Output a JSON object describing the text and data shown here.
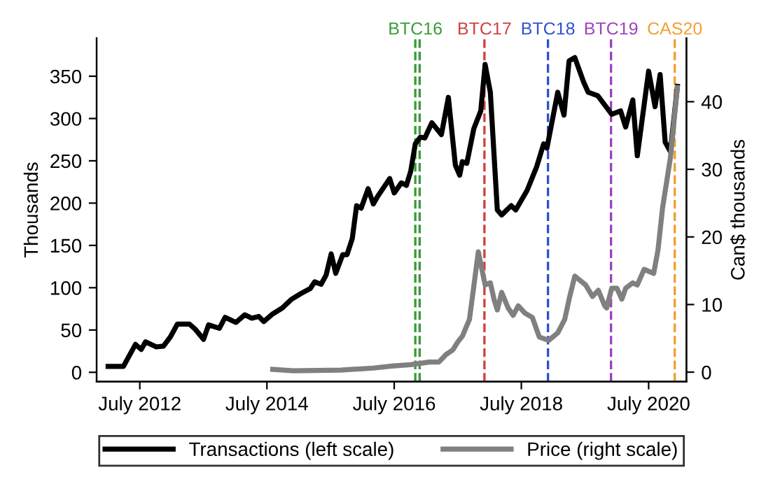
{
  "chart_data": {
    "type": "line",
    "ylabel": "Thousands",
    "y2label": "Can$ thousands",
    "xlim": [
      "2011-10-27",
      "2021-02-03"
    ],
    "xticks": [
      {
        "value": "2012-07-01",
        "label": "July 2012"
      },
      {
        "value": "2014-07-01",
        "label": "July 2014"
      },
      {
        "value": "2016-07-01",
        "label": "July 2016"
      },
      {
        "value": "2018-07-01",
        "label": "July 2018"
      },
      {
        "value": "2020-07-01",
        "label": "July 2020"
      }
    ],
    "ylim": [
      -11,
      395
    ],
    "yticks": [
      0,
      50,
      100,
      150,
      200,
      250,
      300,
      350
    ],
    "y2lim": [
      -1.4,
      49.4
    ],
    "y2ticks": [
      0,
      10,
      20,
      30,
      40
    ],
    "grid": false,
    "legend": "bottom",
    "line_style": "solid",
    "marker": "none",
    "series": [
      {
        "name": "Transactions (left scale)",
        "color": "#000000",
        "x": [
          "2012-01-01",
          "2012-03-29",
          "2012-06-06",
          "2012-07-09",
          "2012-08-03",
          "2012-10-04",
          "2012-11-14",
          "2012-12-24",
          "2013-02-02",
          "2013-04-12",
          "2013-05-15",
          "2013-07-02",
          "2013-07-31",
          "2013-10-01",
          "2013-11-03",
          "2014-01-04",
          "2014-02-24",
          "2014-04-05",
          "2014-05-15",
          "2014-06-13",
          "2014-08-03",
          "2014-09-27",
          "2014-11-17",
          "2015-01-11",
          "2015-03-07",
          "2015-04-01",
          "2015-05-08",
          "2015-06-06",
          "2015-07-05",
          "2015-07-31",
          "2015-09-09",
          "2015-10-04",
          "2015-11-03",
          "2015-11-28",
          "2015-12-24",
          "2016-02-02",
          "2016-03-03",
          "2016-03-28",
          "2016-06-05",
          "2016-07-01",
          "2016-08-11",
          "2016-09-09",
          "2016-10-04",
          "2016-10-30",
          "2016-11-28",
          "2016-12-24",
          "2017-02-02",
          "2017-03-29",
          "2017-05-08",
          "2017-06-17",
          "2017-07-12",
          "2017-07-27",
          "2017-08-22",
          "2017-10-01",
          "2017-11-10",
          "2017-12-05",
          "2018-01-04",
          "2018-02-13",
          "2018-03-10",
          "2018-05-04",
          "2018-05-30",
          "2018-08-03",
          "2018-09-27",
          "2018-11-06",
          "2018-11-25",
          "2018-12-27",
          "2019-01-26",
          "2019-03-03",
          "2019-04-01",
          "2019-05-04",
          "2019-06-24",
          "2019-07-20",
          "2019-09-13",
          "2019-12-02",
          "2020-01-22",
          "2020-02-20",
          "2020-04-01",
          "2020-04-27",
          "2020-07-01",
          "2020-08-07",
          "2020-09-05",
          "2020-10-04",
          "2020-11-03",
          "2020-12-13"
        ],
        "values": [
          7,
          7,
          33,
          27,
          36,
          30,
          31,
          42,
          57,
          57,
          51,
          39,
          56,
          52,
          65,
          59,
          68,
          64,
          66,
          60,
          69,
          76,
          86,
          93,
          99,
          107,
          104,
          115,
          140,
          117,
          139,
          139,
          158,
          197,
          194,
          217,
          199,
          208,
          229,
          212,
          224,
          221,
          238,
          270,
          278,
          277,
          295,
          281,
          325,
          245,
          233,
          249,
          247,
          288,
          309,
          364,
          331,
          192,
          186,
          197,
          192,
          215,
          243,
          270,
          265,
          299,
          331,
          304,
          368,
          372,
          343,
          331,
          327,
          305,
          309,
          290,
          322,
          256,
          356,
          314,
          352,
          272,
          261,
          338
        ]
      },
      {
        "name": "Price (right scale)",
        "color": "#808080",
        "axis": "y2",
        "x": [
          "2014-08-03",
          "2014-12-02",
          "2015-08-29",
          "2016-03-03",
          "2016-06-17",
          "2016-10-04",
          "2017-01-19",
          "2017-03-15",
          "2017-04-24",
          "2017-06-03",
          "2017-06-29",
          "2017-07-27",
          "2017-09-06",
          "2017-10-27",
          "2017-12-05",
          "2018-01-04",
          "2018-01-26",
          "2018-02-13",
          "2018-03-10",
          "2018-04-16",
          "2018-05-15",
          "2018-06-13",
          "2018-07-23",
          "2018-09-02",
          "2018-10-12",
          "2018-12-05",
          "2019-01-26",
          "2019-03-07",
          "2019-04-05",
          "2019-05-04",
          "2019-07-05",
          "2019-08-14",
          "2019-09-16",
          "2019-10-23",
          "2019-11-03",
          "2019-12-02",
          "2020-01-01",
          "2020-01-29",
          "2020-02-20",
          "2020-04-01",
          "2020-04-27",
          "2020-06-05",
          "2020-07-30",
          "2020-08-24",
          "2020-09-19",
          "2020-11-03",
          "2020-12-13"
        ],
        "values": [
          0.4,
          0.2,
          0.3,
          0.6,
          0.9,
          1.1,
          1.5,
          1.5,
          2.6,
          3.3,
          4.4,
          5.3,
          7.8,
          17.8,
          12.9,
          13.2,
          10.7,
          9.2,
          11.8,
          9.5,
          8.4,
          9.8,
          8.7,
          8.1,
          5.2,
          4.7,
          5.8,
          7.8,
          11.2,
          14.2,
          12.9,
          11.2,
          12.1,
          9.8,
          9.5,
          12.4,
          12.4,
          10.8,
          12.4,
          13.2,
          12.9,
          15.2,
          14.6,
          18.1,
          24.3,
          31.7,
          42.1
        ]
      }
    ],
    "ref_lines": [
      {
        "axis": "x",
        "value": "2016-10-30",
        "label": "BTC16",
        "color": "#3a9a3a",
        "line_style": "dashed"
      },
      {
        "axis": "x",
        "value": "2016-11-24",
        "label": null,
        "color": "#3a9a3a",
        "line_style": "dashed"
      },
      {
        "axis": "x",
        "value": "2017-12-01",
        "label": "BTC17",
        "color": "#d04040",
        "line_style": "dashed"
      },
      {
        "axis": "x",
        "value": "2018-12-01",
        "label": "BTC18",
        "color": "#3050d0",
        "line_style": "dashed"
      },
      {
        "axis": "x",
        "value": "2019-11-28",
        "label": "BTC19",
        "color": "#a040c0",
        "line_style": "dashed"
      },
      {
        "axis": "x",
        "value": "2020-11-28",
        "label": "CAS20",
        "color": "#f0a030",
        "line_style": "dashed"
      }
    ]
  }
}
